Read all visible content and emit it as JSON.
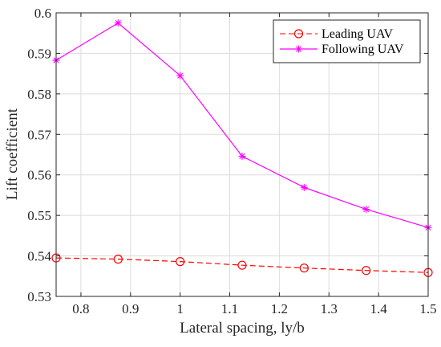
{
  "chart_data": {
    "type": "line",
    "xlabel": "Lateral spacing, ly/b",
    "ylabel": "Lift coefficient",
    "xlim": [
      0.75,
      1.5
    ],
    "ylim": [
      0.53,
      0.6
    ],
    "xticks": [
      "0.8",
      "0.9",
      "1",
      "1.1",
      "1.2",
      "1.3",
      "1.4",
      "1.5"
    ],
    "yticks": [
      "0.53",
      "0.54",
      "0.55",
      "0.56",
      "0.57",
      "0.58",
      "0.59",
      "0.6"
    ],
    "legend_position": "top-right",
    "x": [
      0.75,
      0.875,
      1.0,
      1.125,
      1.25,
      1.375,
      1.5
    ],
    "series": [
      {
        "name": "Leading UAV",
        "values": [
          0.5395,
          0.5392,
          0.5386,
          0.5377,
          0.537,
          0.5364,
          0.5359
        ],
        "color": "#ff0000",
        "line_style": "dashed",
        "marker": "circle"
      },
      {
        "name": "Following UAV",
        "values": [
          0.5883,
          0.5975,
          0.5845,
          0.5646,
          0.5569,
          0.5515,
          0.547
        ],
        "color": "#ff00ff",
        "line_style": "solid",
        "marker": "asterisk"
      }
    ]
  }
}
